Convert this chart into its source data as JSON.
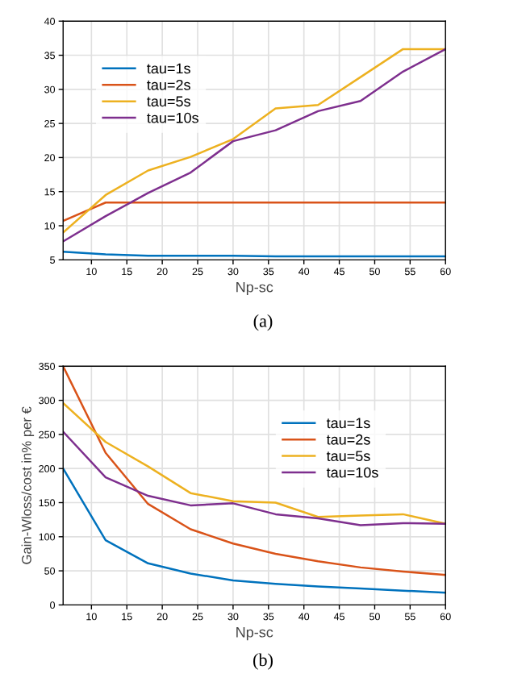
{
  "chart_data": [
    {
      "type": "line",
      "xlabel": "Np-sc",
      "x": [
        6,
        12,
        18,
        24,
        30,
        36,
        42,
        48,
        54,
        60
      ],
      "xlim": [
        6,
        60
      ],
      "xticks": [
        10,
        15,
        20,
        25,
        30,
        35,
        40,
        45,
        50,
        55,
        60
      ],
      "ylim": [
        5,
        40
      ],
      "yticks": [
        5,
        10,
        15,
        20,
        25,
        30,
        35,
        40
      ],
      "grid": true,
      "legend": "top left",
      "annotations": [
        "(a)"
      ],
      "series": [
        {
          "name": "tau=1s",
          "color": "#0072bd",
          "values": [
            6.2,
            5.8,
            5.6,
            5.6,
            5.6,
            5.5,
            5.5,
            5.5,
            5.5,
            5.5
          ]
        },
        {
          "name": "tau=2s",
          "color": "#d95319",
          "values": [
            10.7,
            13.4,
            13.4,
            13.4,
            13.4,
            13.4,
            13.4,
            13.4,
            13.4,
            13.4
          ]
        },
        {
          "name": "tau=5s",
          "color": "#edb120",
          "values": [
            9.0,
            14.5,
            18.1,
            20.1,
            22.7,
            27.2,
            27.7,
            31.8,
            35.9,
            35.9
          ]
        },
        {
          "name": "tau=10s",
          "color": "#7e2f8e",
          "values": [
            7.7,
            11.4,
            14.8,
            17.8,
            22.4,
            24.0,
            26.8,
            28.3,
            32.6,
            35.9
          ]
        }
      ]
    },
    {
      "type": "line",
      "xlabel": "Np-sc",
      "ylabel": "Gain-Wloss/cost in% per €",
      "x": [
        6,
        12,
        18,
        24,
        30,
        36,
        42,
        48,
        54,
        60
      ],
      "xlim": [
        6,
        60
      ],
      "xticks": [
        10,
        15,
        20,
        25,
        30,
        35,
        40,
        45,
        50,
        55,
        60
      ],
      "ylim": [
        0,
        350
      ],
      "yticks": [
        0,
        50,
        100,
        150,
        200,
        250,
        300,
        350
      ],
      "grid": true,
      "legend": "top right",
      "annotations": [
        "(b)"
      ],
      "series": [
        {
          "name": "tau=1s",
          "color": "#0072bd",
          "values": [
            200,
            95,
            61,
            46,
            36,
            31,
            27,
            24,
            21,
            18
          ]
        },
        {
          "name": "tau=2s",
          "color": "#d95319",
          "values": [
            350,
            223,
            148,
            111,
            90,
            75,
            64,
            55,
            49,
            44
          ]
        },
        {
          "name": "tau=5s",
          "color": "#edb120",
          "values": [
            296,
            239,
            203,
            164,
            152,
            150,
            129,
            131,
            133,
            119
          ]
        },
        {
          "name": "tau=10s",
          "color": "#7e2f8e",
          "values": [
            254,
            187,
            160,
            146,
            149,
            133,
            127,
            117,
            120,
            119
          ]
        }
      ]
    }
  ]
}
